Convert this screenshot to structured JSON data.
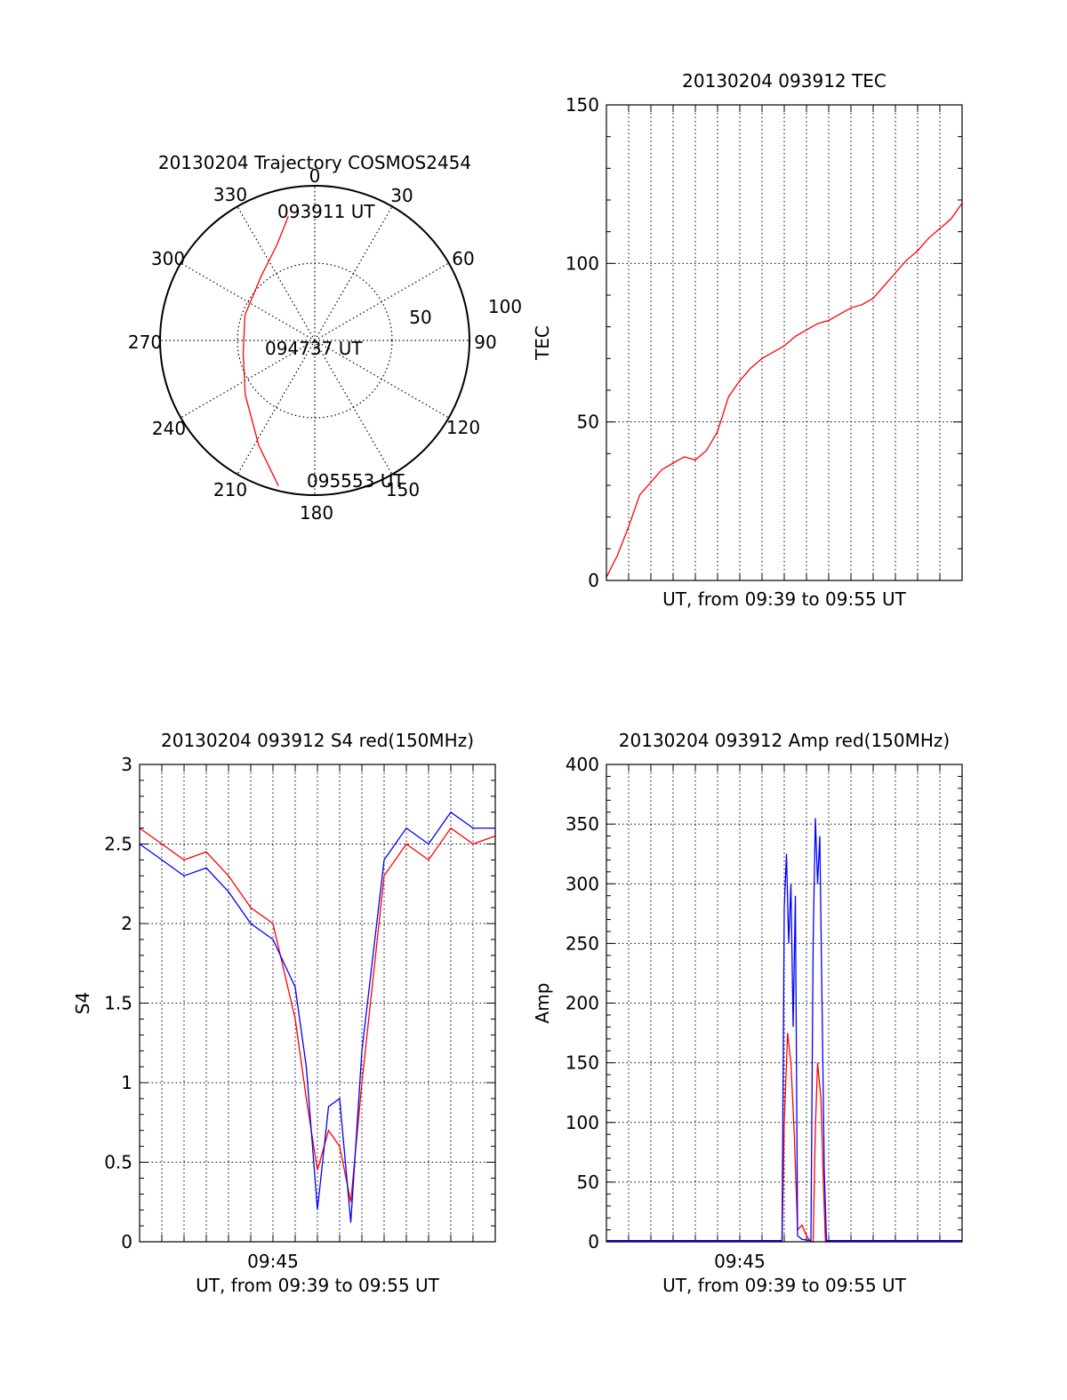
{
  "chart_data": [
    {
      "type": "polar",
      "title": "20130204 Trajectory COSMOS2454",
      "azimuth_ticks": [
        "0",
        "30",
        "60",
        "90",
        "120",
        "150",
        "180",
        "210",
        "240",
        "270",
        "300",
        "330"
      ],
      "radial_ticks": [
        "50",
        "100"
      ],
      "radial_range": [
        0,
        100
      ],
      "grid": true,
      "series": [
        {
          "color": "#ff0000",
          "points": [
            {
              "az": 348,
              "r": 82
            },
            {
              "az": 338,
              "r": 66
            },
            {
              "az": 320,
              "r": 54
            },
            {
              "az": 290,
              "r": 48
            },
            {
              "az": 260,
              "r": 47
            },
            {
              "az": 232,
              "r": 57
            },
            {
              "az": 208,
              "r": 77
            },
            {
              "az": 194,
              "r": 97
            }
          ]
        }
      ],
      "annotations": [
        "093911 UT",
        "094737 UT",
        "095553 UT"
      ]
    },
    {
      "type": "line",
      "title": "20130204 093912 TEC",
      "xlabel": "UT, from 09:39 to 09:55 UT",
      "ylabel": "TEC",
      "xlim": [
        "09:39",
        "09:55"
      ],
      "ylim": [
        0,
        150
      ],
      "yticks": [
        "0",
        "50",
        "100",
        "150"
      ],
      "grid": true,
      "series": [
        {
          "color": "#ff0000",
          "x_minutes_of_span": [
            0.0,
            0.5,
            1.0,
            1.5,
            2.0,
            2.5,
            3.0,
            3.5,
            4.0,
            4.5,
            5.0,
            5.5,
            6.0,
            6.5,
            7.0,
            7.5,
            8.0,
            8.5,
            9.0,
            9.5,
            10.0,
            10.5,
            11.0,
            11.5,
            12.0,
            12.5,
            13.0,
            13.5,
            14.0,
            14.5,
            15.0,
            15.5,
            16.0
          ],
          "y": [
            1,
            8,
            17,
            27,
            31,
            35,
            37,
            39,
            38,
            41,
            47,
            58,
            63,
            67,
            70,
            72,
            74,
            77,
            79,
            81,
            82,
            84,
            86,
            87,
            89,
            93,
            97,
            101,
            104,
            108,
            111,
            114,
            119
          ]
        }
      ]
    },
    {
      "type": "line",
      "title": "20130204 093912 S4 red(150MHz)",
      "xlabel": "UT, from 09:39 to 09:55 UT",
      "ylabel": "S4",
      "xlim": [
        "09:39",
        "09:55"
      ],
      "xtick_labels": [
        "09:45"
      ],
      "ylim": [
        0,
        3
      ],
      "yticks": [
        "0",
        "0.5",
        "1",
        "1.5",
        "2",
        "2.5",
        "3"
      ],
      "grid": true,
      "series": [
        {
          "color": "#ff0000",
          "x_minutes_of_span": [
            0.0,
            1.0,
            2.0,
            3.0,
            4.0,
            5.0,
            6.0,
            7.0,
            7.5,
            8.0,
            8.5,
            9.0,
            9.5,
            10.0,
            11.0,
            12.0,
            13.0,
            14.0,
            15.0,
            16.0
          ],
          "y": [
            2.6,
            2.5,
            2.4,
            2.45,
            2.3,
            2.1,
            2.0,
            1.4,
            0.9,
            0.45,
            0.7,
            0.6,
            0.25,
            1.0,
            2.3,
            2.5,
            2.4,
            2.6,
            2.5,
            2.55
          ]
        },
        {
          "color": "#0000ff",
          "x_minutes_of_span": [
            0.0,
            1.0,
            2.0,
            3.0,
            4.0,
            5.0,
            6.0,
            7.0,
            7.5,
            8.0,
            8.5,
            9.0,
            9.5,
            10.0,
            11.0,
            12.0,
            13.0,
            14.0,
            15.0,
            16.0
          ],
          "y": [
            2.5,
            2.4,
            2.3,
            2.35,
            2.2,
            2.0,
            1.9,
            1.6,
            1.1,
            0.2,
            0.85,
            0.9,
            0.12,
            1.2,
            2.4,
            2.6,
            2.5,
            2.7,
            2.6,
            2.6
          ]
        }
      ]
    },
    {
      "type": "line",
      "title": "20130204 093912 Amp red(150MHz)",
      "xlabel": "UT, from 09:39 to 09:55 UT",
      "ylabel": "Amp",
      "xlim": [
        "09:39",
        "09:55"
      ],
      "xtick_labels": [
        "09:45"
      ],
      "ylim": [
        0,
        400
      ],
      "yticks": [
        "0",
        "50",
        "100",
        "150",
        "200",
        "250",
        "300",
        "350",
        "400"
      ],
      "grid": true,
      "series": [
        {
          "color": "#ff0000",
          "x_minutes_of_span": [
            0.0,
            7.9,
            8.0,
            8.15,
            8.3,
            8.45,
            8.6,
            8.8,
            9.0,
            9.2,
            9.3,
            9.4,
            9.5,
            9.65,
            9.75,
            9.85,
            16.0
          ],
          "y": [
            0,
            0,
            100,
            175,
            150,
            90,
            10,
            14,
            5,
            0,
            0,
            95,
            150,
            120,
            55,
            0,
            0
          ]
        },
        {
          "color": "#0000ff",
          "x_minutes_of_span": [
            0.0,
            7.9,
            8.0,
            8.1,
            8.2,
            8.3,
            8.4,
            8.5,
            8.6,
            8.8,
            9.2,
            9.3,
            9.4,
            9.5,
            9.6,
            9.7,
            9.8,
            9.9,
            16.0
          ],
          "y": [
            1,
            1,
            280,
            325,
            250,
            300,
            180,
            290,
            5,
            2,
            1,
            250,
            355,
            300,
            340,
            200,
            60,
            1,
            1
          ]
        }
      ]
    }
  ]
}
